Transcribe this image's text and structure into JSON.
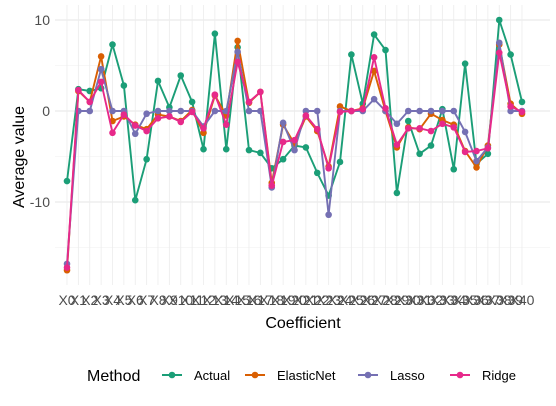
{
  "chart_data": {
    "type": "line",
    "xlabel": "Coefficient",
    "ylabel": "Average value",
    "x": [
      "X0",
      "X1",
      "X2",
      "X3",
      "X4",
      "X5",
      "X6",
      "X7",
      "X8",
      "X9",
      "X10",
      "X11",
      "X12",
      "X13",
      "X14",
      "X15",
      "X16",
      "X17",
      "X18",
      "X19",
      "X20",
      "X21",
      "X22",
      "X23",
      "X24",
      "X25",
      "X26",
      "X27",
      "X28",
      "X29",
      "X30",
      "X31",
      "X32",
      "X33",
      "X34",
      "X35",
      "X36",
      "X37",
      "X38",
      "X39",
      "X40"
    ],
    "ylim": [
      -19,
      11
    ],
    "yticks": [
      -10,
      0,
      10
    ],
    "grid": true,
    "legend": {
      "title": "Method",
      "position": "bottom"
    },
    "series": [
      {
        "name": "Actual",
        "color": "#1b9e77",
        "values": [
          -7.7,
          2.4,
          2.2,
          2.5,
          7.3,
          2.8,
          -9.8,
          -5.3,
          3.3,
          0.4,
          3.9,
          1.0,
          -4.2,
          8.5,
          -4.2,
          7.0,
          -4.3,
          -4.6,
          -6.3,
          -5.3,
          -3.8,
          -4.0,
          -6.8,
          -9.3,
          -5.6,
          6.2,
          0.8,
          8.4,
          6.7,
          -9.0,
          -1.1,
          -4.7,
          -3.8,
          0.2,
          -6.4,
          5.2,
          -5.8,
          -4.7,
          10.0,
          6.2,
          1.0
        ]
      },
      {
        "name": "ElasticNet",
        "color": "#d95f02",
        "values": [
          -17.5,
          2.2,
          1.0,
          6.0,
          -1.1,
          -0.6,
          -1.5,
          -2.0,
          -0.4,
          -0.6,
          -1.1,
          0.1,
          -2.4,
          1.7,
          -0.5,
          7.7,
          0.9,
          2.1,
          -7.9,
          -1.5,
          -3.6,
          -0.6,
          -2.2,
          -6.1,
          0.5,
          0.0,
          0.3,
          4.4,
          0.0,
          -4.0,
          -1.8,
          -2.0,
          -0.3,
          -1.0,
          -1.5,
          -4.4,
          -6.2,
          -3.8,
          7.3,
          0.8,
          -0.3
        ]
      },
      {
        "name": "Lasso",
        "color": "#7570b3",
        "values": [
          -16.8,
          0.0,
          0.0,
          4.6,
          0.0,
          0.0,
          -2.5,
          -0.3,
          0.0,
          0.0,
          0.0,
          0.0,
          -1.7,
          0.0,
          0.0,
          6.5,
          0.0,
          0.0,
          -8.4,
          -1.3,
          -4.3,
          0.0,
          0.0,
          -11.4,
          0.0,
          0.0,
          0.0,
          1.3,
          0.0,
          -1.4,
          0.0,
          0.0,
          0.0,
          0.0,
          0.0,
          -2.3,
          -5.5,
          -4.0,
          7.5,
          0.0,
          0.0
        ]
      },
      {
        "name": "Ridge",
        "color": "#e7298a",
        "values": [
          -17.2,
          2.3,
          1.0,
          3.2,
          -2.4,
          -0.4,
          -1.6,
          -2.2,
          -0.8,
          -0.6,
          -1.2,
          -0.1,
          -1.9,
          1.8,
          -1.5,
          5.4,
          1.0,
          2.1,
          -8.2,
          -3.4,
          -3.2,
          -0.5,
          -2.0,
          -6.3,
          -0.1,
          0.0,
          0.2,
          5.9,
          0.3,
          -3.7,
          -1.9,
          -1.9,
          -2.2,
          -1.4,
          -1.8,
          -4.5,
          -4.4,
          -4.1,
          6.4,
          0.5,
          -0.1
        ]
      }
    ]
  }
}
